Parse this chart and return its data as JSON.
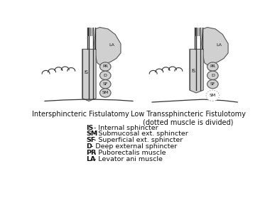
{
  "background_color": "#ffffff",
  "legend_items": [
    {
      "label": "IS - Internal sphincter",
      "bold": "IS"
    },
    {
      "label": "SM - Submucosal ext. sphincter",
      "bold": "SM"
    },
    {
      "label": "SF - Superficial ext. sphincter",
      "bold": "SF"
    },
    {
      "label": "D - Deep external sphincter",
      "bold": "D"
    },
    {
      "label": "PR - Puborectalis muscle",
      "bold": "PR"
    },
    {
      "label": "LA - Levator ani muscle",
      "bold": "LA"
    }
  ],
  "left_title": "Intersphincteric Fistulatomy",
  "right_title": "Low Transsphincteric Fistulotomy\n(dotted muscle is divided)",
  "label_fontsize": 5.5,
  "title_fontsize": 7,
  "legend_fontsize": 6.8,
  "light_gray": "#d0d0d0",
  "edge_color": "#555555",
  "line_color": "#333333"
}
